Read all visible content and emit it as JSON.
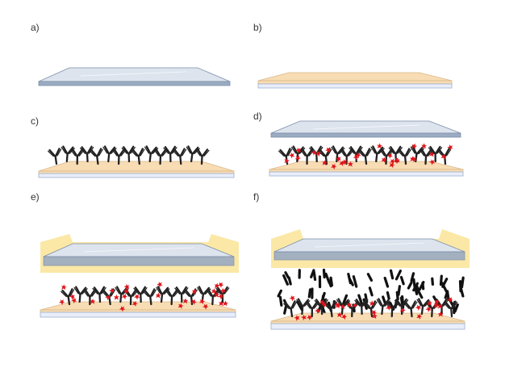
{
  "panels": [
    {
      "id": "a",
      "label": "a)"
    },
    {
      "id": "b",
      "label": "b)"
    },
    {
      "id": "c",
      "label": "c)"
    },
    {
      "id": "d",
      "label": "d)"
    },
    {
      "id": "e",
      "label": "e)"
    },
    {
      "id": "f",
      "label": "f)"
    }
  ],
  "colors": {
    "glass_top": "#dde4ee",
    "glass_side": "#9aabc2",
    "glass_edge": "#7b8ea8",
    "substrate": "#f8dcb4",
    "substrate_edge": "#d9b98a",
    "base": "#e8eefa",
    "base_edge": "#9db0cf",
    "antibody": "#222222",
    "antigen": "#e0141b",
    "gel": "#fbe8a6",
    "rod": "#111111"
  }
}
